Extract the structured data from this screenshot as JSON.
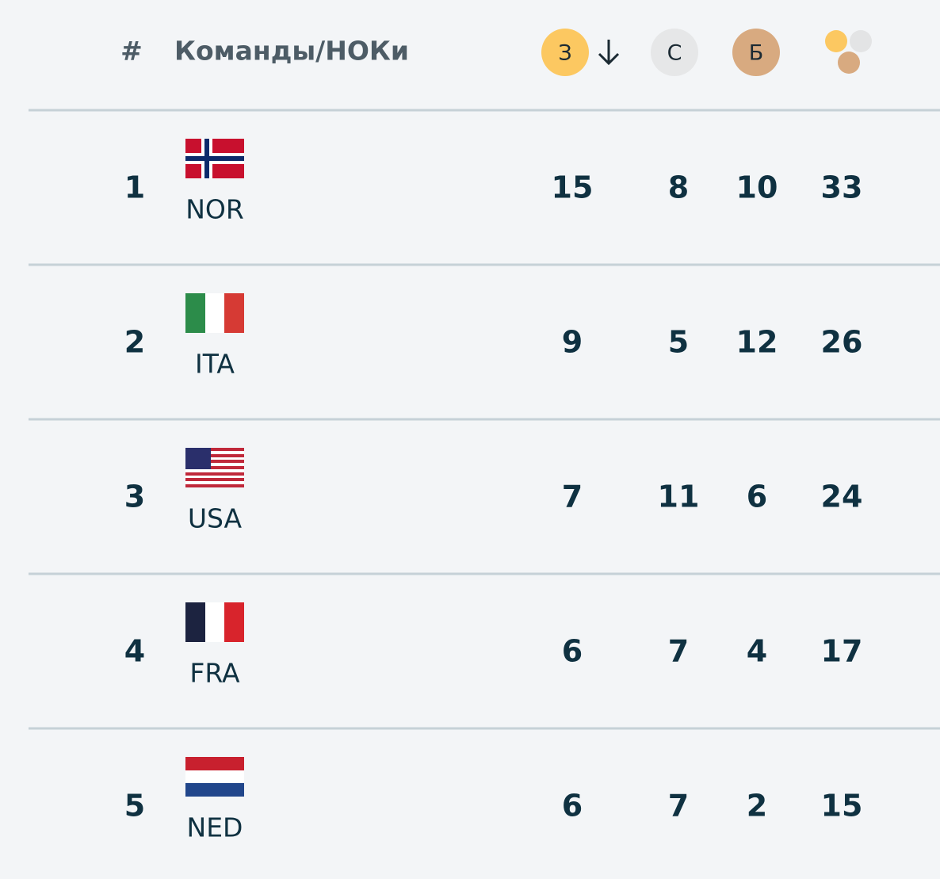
{
  "header": {
    "rank": "#",
    "team": "Команды/НОКи",
    "gold": "З",
    "silver": "С",
    "bronze": "Б"
  },
  "rows": [
    {
      "rank": 1,
      "noc": "NOR",
      "gold": 15,
      "silver": 8,
      "bronze": 10,
      "total": 33
    },
    {
      "rank": 2,
      "noc": "ITA",
      "gold": 9,
      "silver": 5,
      "bronze": 12,
      "total": 26
    },
    {
      "rank": 3,
      "noc": "USA",
      "gold": 7,
      "silver": 11,
      "bronze": 6,
      "total": 24
    },
    {
      "rank": 4,
      "noc": "FRA",
      "gold": 6,
      "silver": 7,
      "bronze": 4,
      "total": 17
    },
    {
      "rank": 5,
      "noc": "NED",
      "gold": 6,
      "silver": 7,
      "bronze": 2,
      "total": 15
    }
  ]
}
